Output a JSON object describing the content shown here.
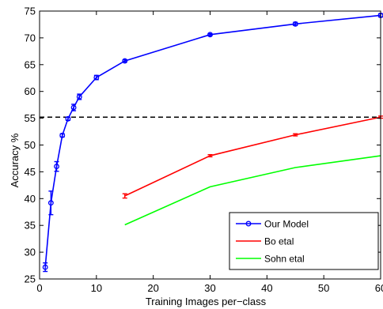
{
  "chart_data": {
    "type": "line",
    "xlabel": "Training Images per−class",
    "ylabel": "Accuracy %",
    "xlim": [
      0,
      60
    ],
    "ylim": [
      25,
      75
    ],
    "x_ticks": [
      0,
      10,
      20,
      30,
      40,
      50,
      60
    ],
    "y_ticks": [
      25,
      30,
      35,
      40,
      45,
      50,
      55,
      60,
      65,
      70,
      75
    ],
    "grid": false,
    "legend_position": "bottom-right",
    "reference_line": {
      "y": 55.2,
      "style": "dashed",
      "color": "#000000"
    },
    "series": [
      {
        "name": "Our Model",
        "color": "#0000ff",
        "marker": "circle",
        "x": [
          1,
          2,
          3,
          4,
          5,
          6,
          7,
          10,
          15,
          30,
          45,
          60
        ],
        "y": [
          27.2,
          39.2,
          46.0,
          51.8,
          54.9,
          57.0,
          59.0,
          62.6,
          65.7,
          70.6,
          72.6,
          74.2
        ],
        "err": [
          0.8,
          2.2,
          0.9,
          0.3,
          0.3,
          0.6,
          0.5,
          0.4,
          0.2,
          0.2,
          0.3,
          0.3
        ]
      },
      {
        "name": "Bo etal",
        "color": "#ff0000",
        "marker": "none",
        "x": [
          15,
          30,
          45,
          60
        ],
        "y": [
          40.5,
          48.0,
          51.9,
          55.2
        ],
        "err": [
          0.4,
          0.2,
          0.2,
          0.2
        ]
      },
      {
        "name": "Sohn etal",
        "color": "#00ff00",
        "marker": "none",
        "x": [
          15,
          30,
          45,
          60
        ],
        "y": [
          35.1,
          42.2,
          45.8,
          48.0
        ],
        "err": [
          0,
          0,
          0,
          0
        ]
      }
    ]
  }
}
